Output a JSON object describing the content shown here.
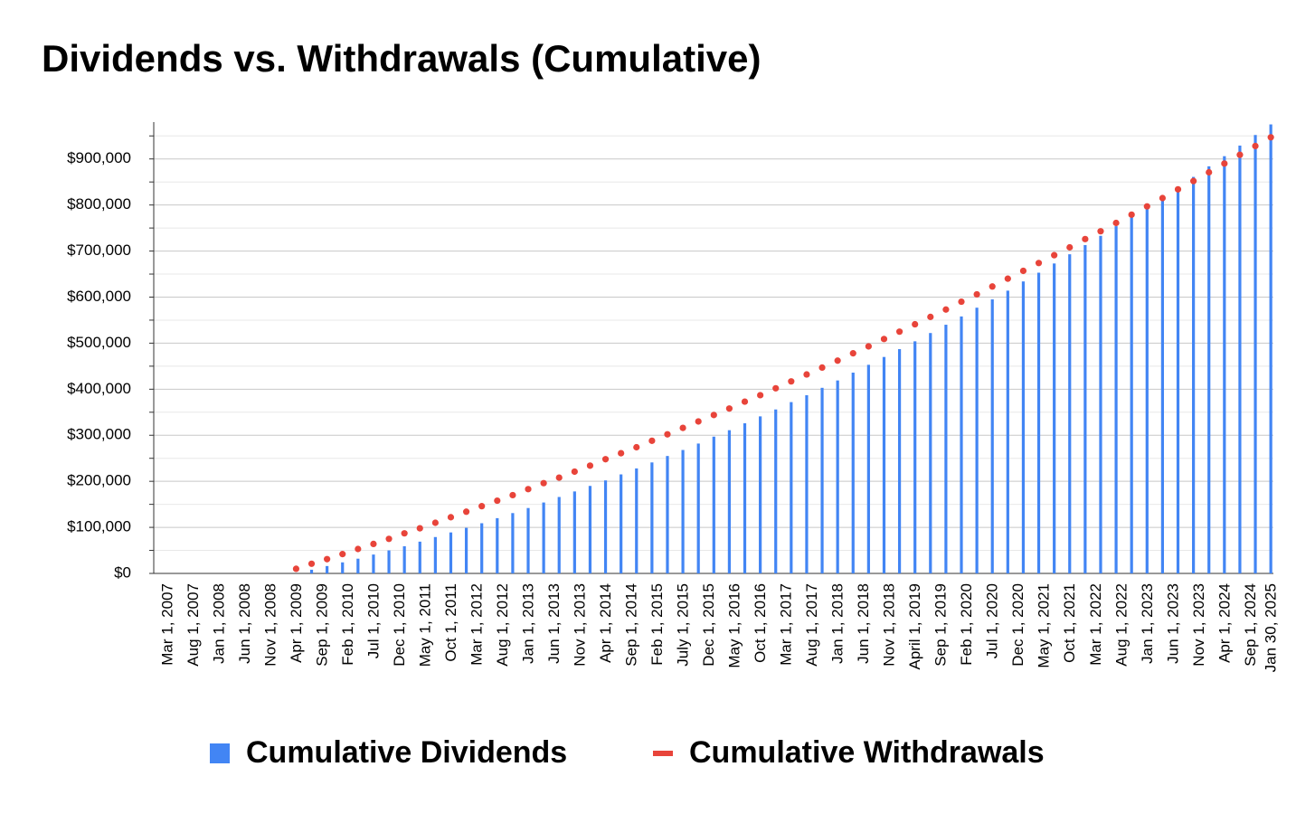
{
  "chart_data": {
    "type": "bar",
    "title": "Dividends vs. Withdrawals (Cumulative)",
    "categories": [
      "Mar 1, 2007",
      null,
      null,
      null,
      null,
      "Aug 1, 2007",
      null,
      null,
      null,
      null,
      "Jan 1, 2008",
      null,
      null,
      null,
      null,
      "Jun 1, 2008",
      null,
      null,
      null,
      null,
      "Nov 1, 2008",
      null,
      null,
      null,
      null,
      "Apr 1, 2009",
      null,
      null,
      null,
      null,
      "Sep 1, 2009",
      null,
      null,
      null,
      null,
      "Feb 1, 2010",
      null,
      null,
      null,
      null,
      "Jul 1, 2010",
      null,
      null,
      null,
      null,
      "Dec 1, 2010",
      null,
      null,
      null,
      null,
      "May 1, 2011",
      null,
      null,
      null,
      null,
      "Oct 1, 2011",
      null,
      null,
      null,
      null,
      "Mar 1, 2012",
      null,
      null,
      null,
      null,
      "Aug 1, 2012",
      null,
      null,
      null,
      null,
      "Jan 1, 2013",
      null,
      null,
      null,
      null,
      "Jun 1, 2013",
      null,
      null,
      null,
      null,
      "Nov 1, 2013",
      null,
      null,
      null,
      null,
      "Apr 1, 2014",
      null,
      null,
      null,
      null,
      "Sep 1, 2014",
      null,
      null,
      null,
      null,
      "Feb 1, 2015",
      null,
      null,
      null,
      null,
      "July 1, 2015",
      null,
      null,
      null,
      null,
      "Dec 1, 2015",
      null,
      null,
      null,
      null,
      "May 1, 2016",
      null,
      null,
      null,
      null,
      "Oct 1, 2016",
      null,
      null,
      null,
      null,
      "Mar 1, 2017",
      null,
      null,
      null,
      null,
      "Aug 1, 2017",
      null,
      null,
      null,
      null,
      "Jan 1, 2018",
      null,
      null,
      null,
      null,
      "Jun 1, 2018",
      null,
      null,
      null,
      null,
      "Nov 1, 2018",
      null,
      null,
      null,
      null,
      "April 1, 2019",
      null,
      null,
      null,
      null,
      "Sep 1, 2019",
      null,
      null,
      null,
      null,
      "Feb 1, 2020",
      null,
      null,
      null,
      null,
      "Jul 1, 2020",
      null,
      null,
      null,
      null,
      "Dec 1, 2020",
      null,
      null,
      null,
      null,
      "May 1, 2021",
      null,
      null,
      null,
      null,
      "Oct 1, 2021",
      null,
      null,
      null,
      null,
      "Mar 1, 2022",
      null,
      null,
      null,
      null,
      "Aug 1, 2022",
      null,
      null,
      null,
      null,
      "Jan 1, 2023",
      null,
      null,
      null,
      null,
      "Jun 1, 2023",
      null,
      null,
      null,
      null,
      "Nov 1, 2023",
      null,
      null,
      null,
      null,
      "Apr 1, 2024",
      null,
      null,
      null,
      null,
      "Sep 1, 2024",
      null,
      null,
      null,
      "Jan 30, 2025"
    ],
    "series": [
      {
        "name": "Cumulative Dividends",
        "type": "bar",
        "color": "#4285f4",
        "values": [
          null,
          null,
          null,
          null,
          null,
          null,
          null,
          null,
          null,
          null,
          null,
          null,
          null,
          null,
          null,
          null,
          null,
          null,
          null,
          null,
          null,
          null,
          null,
          null,
          null,
          0,
          null,
          null,
          8000,
          null,
          null,
          16000,
          null,
          null,
          24000,
          null,
          null,
          32000,
          null,
          null,
          41000,
          null,
          null,
          50000,
          null,
          null,
          59000,
          null,
          null,
          69000,
          null,
          null,
          79000,
          null,
          null,
          89000,
          null,
          null,
          99000,
          null,
          null,
          109000,
          null,
          null,
          120000,
          null,
          null,
          131000,
          null,
          null,
          142000,
          null,
          null,
          154000,
          null,
          null,
          166000,
          null,
          null,
          178000,
          null,
          null,
          190000,
          null,
          null,
          202000,
          null,
          null,
          215000,
          null,
          null,
          228000,
          null,
          null,
          241000,
          null,
          null,
          255000,
          null,
          null,
          268000,
          null,
          null,
          282000,
          null,
          null,
          297000,
          null,
          null,
          311000,
          null,
          null,
          326000,
          null,
          null,
          341000,
          null,
          null,
          356000,
          null,
          null,
          372000,
          null,
          null,
          387000,
          null,
          null,
          403000,
          null,
          null,
          419000,
          null,
          null,
          436000,
          null,
          null,
          453000,
          null,
          null,
          470000,
          null,
          null,
          487000,
          null,
          null,
          504000,
          null,
          null,
          522000,
          null,
          null,
          540000,
          null,
          null,
          558000,
          null,
          null,
          577000,
          null,
          null,
          595000,
          null,
          null,
          614000,
          null,
          null,
          634000,
          null,
          null,
          653000,
          null,
          null,
          673000,
          null,
          null,
          693000,
          null,
          null,
          713000,
          null,
          null,
          733000,
          null,
          null,
          754000,
          null,
          null,
          775000,
          null,
          null,
          796000,
          null,
          null,
          818000,
          null,
          null,
          839000,
          null,
          null,
          861000,
          null,
          null,
          884000,
          null,
          null,
          906000,
          null,
          null,
          929000,
          null,
          null,
          952000,
          null,
          null,
          975000
        ]
      },
      {
        "name": "Cumulative Withdrawals",
        "type": "scatter",
        "color": "#e8443a",
        "values": [
          null,
          null,
          null,
          null,
          null,
          null,
          null,
          null,
          null,
          null,
          null,
          null,
          null,
          null,
          null,
          null,
          null,
          null,
          null,
          null,
          null,
          null,
          null,
          null,
          null,
          10000,
          null,
          null,
          21000,
          null,
          null,
          31000,
          null,
          null,
          42000,
          null,
          null,
          53000,
          null,
          null,
          64000,
          null,
          null,
          75000,
          null,
          null,
          87000,
          null,
          null,
          98000,
          null,
          null,
          110000,
          null,
          null,
          122000,
          null,
          null,
          134000,
          null,
          null,
          146000,
          null,
          null,
          158000,
          null,
          null,
          170000,
          null,
          null,
          183000,
          null,
          null,
          196000,
          null,
          null,
          208000,
          null,
          null,
          221000,
          null,
          null,
          234000,
          null,
          null,
          248000,
          null,
          null,
          261000,
          null,
          null,
          274000,
          null,
          null,
          288000,
          null,
          null,
          302000,
          null,
          null,
          316000,
          null,
          null,
          330000,
          null,
          null,
          344000,
          null,
          null,
          358000,
          null,
          null,
          373000,
          null,
          null,
          387000,
          null,
          null,
          402000,
          null,
          null,
          417000,
          null,
          null,
          432000,
          null,
          null,
          447000,
          null,
          null,
          462000,
          null,
          null,
          478000,
          null,
          null,
          493000,
          null,
          null,
          509000,
          null,
          null,
          525000,
          null,
          null,
          541000,
          null,
          null,
          557000,
          null,
          null,
          573000,
          null,
          null,
          590000,
          null,
          null,
          606000,
          null,
          null,
          623000,
          null,
          null,
          640000,
          null,
          null,
          657000,
          null,
          null,
          674000,
          null,
          null,
          691000,
          null,
          null,
          708000,
          null,
          null,
          726000,
          null,
          null,
          743000,
          null,
          null,
          761000,
          null,
          null,
          779000,
          null,
          null,
          797000,
          null,
          null,
          815000,
          null,
          null,
          834000,
          null,
          null,
          852000,
          null,
          null,
          871000,
          null,
          null,
          890000,
          null,
          null,
          909000,
          null,
          null,
          928000,
          null,
          null,
          947000
        ]
      }
    ],
    "ylim": [
      0,
      980000
    ],
    "yticks": [
      {
        "value": 0,
        "label": "$0"
      },
      {
        "value": 100000,
        "label": "$100,000"
      },
      {
        "value": 200000,
        "label": "$200,000"
      },
      {
        "value": 300000,
        "label": "$300,000"
      },
      {
        "value": 400000,
        "label": "$400,000"
      },
      {
        "value": 500000,
        "label": "$500,000"
      },
      {
        "value": 600000,
        "label": "$600,000"
      },
      {
        "value": 700000,
        "label": "$700,000"
      },
      {
        "value": 800000,
        "label": "$800,000"
      },
      {
        "value": 900000,
        "label": "$900,000"
      }
    ],
    "yticks_minor": [
      50000,
      150000,
      250000,
      350000,
      450000,
      550000,
      650000,
      750000,
      850000,
      950000
    ],
    "grid": true,
    "legend": "bottom"
  }
}
